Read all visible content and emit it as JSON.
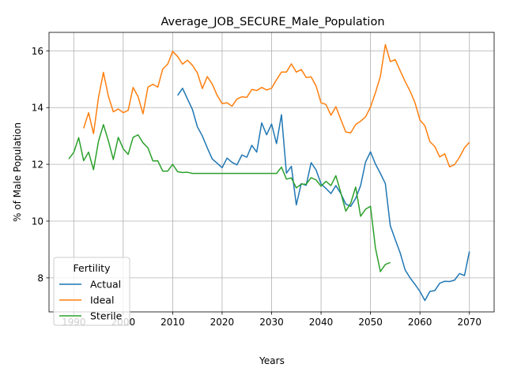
{
  "chart_data": {
    "type": "line",
    "title": "Average_JOB_SECURE_Male_Population",
    "xlabel": "Years",
    "ylabel": "% of Male Population",
    "xlim": [
      1985,
      2075
    ],
    "ylim": [
      6.8,
      16.65
    ],
    "xticks": [
      1990,
      2000,
      2010,
      2020,
      2030,
      2040,
      2050,
      2060,
      2070
    ],
    "yticks": [
      8,
      10,
      12,
      14,
      16
    ],
    "grid": true,
    "legend": {
      "title": "Fertility",
      "placement": "lower-left"
    },
    "series": [
      {
        "name": "Actual",
        "color": "#1f77b4",
        "x": [
          2011,
          2012,
          2013,
          2014,
          2015,
          2016,
          2017,
          2018,
          2019,
          2020,
          2021,
          2022,
          2023,
          2024,
          2025,
          2026,
          2027,
          2028,
          2029,
          2030,
          2031,
          2032,
          2033,
          2034,
          2035,
          2036,
          2037,
          2038,
          2039,
          2040,
          2041,
          2042,
          2043,
          2044,
          2045,
          2046,
          2047,
          2048,
          2049,
          2050,
          2051,
          2052,
          2053,
          2054,
          2055,
          2056,
          2057,
          2058,
          2059,
          2060,
          2061,
          2062,
          2063,
          2064,
          2065,
          2066,
          2067,
          2068,
          2069,
          2070
        ],
        "y": [
          14.43,
          14.68,
          14.3,
          13.93,
          13.32,
          13.0,
          12.58,
          12.19,
          12.04,
          11.88,
          12.22,
          12.07,
          11.98,
          12.33,
          12.25,
          12.67,
          12.43,
          13.46,
          13.04,
          13.42,
          12.73,
          13.75,
          11.69,
          11.93,
          10.57,
          11.32,
          11.26,
          12.06,
          11.8,
          11.31,
          11.15,
          10.97,
          11.25,
          10.97,
          10.6,
          10.52,
          10.8,
          11.25,
          12.08,
          12.44,
          12.01,
          11.68,
          11.32,
          9.84,
          9.35,
          8.88,
          8.28,
          8.0,
          7.77,
          7.52,
          7.2,
          7.52,
          7.55,
          7.81,
          7.88,
          7.87,
          7.92,
          8.15,
          8.08,
          8.93
        ]
      },
      {
        "name": "Ideal",
        "color": "#ff7f0e",
        "x": [
          1992,
          1993,
          1994,
          1995,
          1996,
          1997,
          1998,
          1999,
          2000,
          2001,
          2002,
          2003,
          2004,
          2005,
          2006,
          2007,
          2008,
          2009,
          2010,
          2011,
          2012,
          2013,
          2014,
          2015,
          2016,
          2017,
          2018,
          2019,
          2020,
          2021,
          2022,
          2023,
          2024,
          2025,
          2026,
          2027,
          2028,
          2029,
          2030,
          2031,
          2032,
          2033,
          2034,
          2035,
          2036,
          2037,
          2038,
          2039,
          2040,
          2041,
          2042,
          2043,
          2044,
          2045,
          2046,
          2047,
          2048,
          2049,
          2050,
          2051,
          2052,
          2053,
          2054,
          2055,
          2056,
          2057,
          2058,
          2059,
          2060,
          2061,
          2062,
          2063,
          2064,
          2065,
          2066,
          2067,
          2068,
          2069,
          2070
        ],
        "y": [
          13.27,
          13.82,
          13.08,
          14.35,
          15.24,
          14.4,
          13.85,
          13.95,
          13.82,
          13.9,
          14.71,
          14.39,
          13.78,
          14.72,
          14.82,
          14.72,
          15.36,
          15.53,
          15.98,
          15.8,
          15.53,
          15.67,
          15.49,
          15.22,
          14.67,
          15.09,
          14.83,
          14.43,
          14.14,
          14.17,
          14.05,
          14.3,
          14.38,
          14.36,
          14.64,
          14.6,
          14.71,
          14.62,
          14.68,
          14.98,
          15.25,
          15.25,
          15.54,
          15.25,
          15.34,
          15.06,
          15.08,
          14.76,
          14.17,
          14.11,
          13.73,
          14.03,
          13.58,
          13.14,
          13.11,
          13.4,
          13.52,
          13.67,
          14.02,
          14.52,
          15.1,
          16.22,
          15.62,
          15.69,
          15.3,
          14.92,
          14.58,
          14.17,
          13.56,
          13.36,
          12.8,
          12.63,
          12.26,
          12.37,
          11.91,
          11.99,
          12.25,
          12.58,
          12.78
        ]
      },
      {
        "name": "Sterile",
        "color": "#2ca02c",
        "x": [
          1989,
          1990,
          1991,
          1992,
          1993,
          1994,
          1995,
          1996,
          1997,
          1998,
          1999,
          2000,
          2001,
          2002,
          2003,
          2004,
          2005,
          2006,
          2007,
          2008,
          2009,
          2010,
          2011,
          2012,
          2013,
          2014,
          2015,
          2016,
          2017,
          2018,
          2019,
          2020,
          2021,
          2022,
          2023,
          2024,
          2025,
          2026,
          2027,
          2028,
          2029,
          2030,
          2031,
          2032,
          2033,
          2034,
          2035,
          2036,
          2037,
          2038,
          2039,
          2040,
          2041,
          2042,
          2043,
          2044,
          2045,
          2046,
          2047,
          2048,
          2049,
          2050,
          2051,
          2052,
          2053,
          2054
        ],
        "y": [
          12.19,
          12.42,
          12.94,
          12.13,
          12.43,
          11.81,
          12.81,
          13.4,
          12.83,
          12.17,
          12.95,
          12.55,
          12.35,
          12.95,
          13.04,
          12.76,
          12.58,
          12.12,
          12.12,
          11.76,
          11.76,
          12.0,
          11.74,
          11.71,
          11.72,
          11.68,
          11.68,
          11.68,
          11.68,
          11.68,
          11.68,
          11.68,
          11.68,
          11.68,
          11.68,
          11.68,
          11.68,
          11.68,
          11.68,
          11.68,
          11.68,
          11.68,
          11.68,
          11.9,
          11.48,
          11.52,
          11.17,
          11.3,
          11.3,
          11.53,
          11.45,
          11.23,
          11.4,
          11.25,
          11.6,
          11.0,
          10.35,
          10.63,
          11.2,
          10.17,
          10.42,
          10.52,
          9.05,
          8.22,
          8.47,
          8.54
        ]
      }
    ]
  }
}
